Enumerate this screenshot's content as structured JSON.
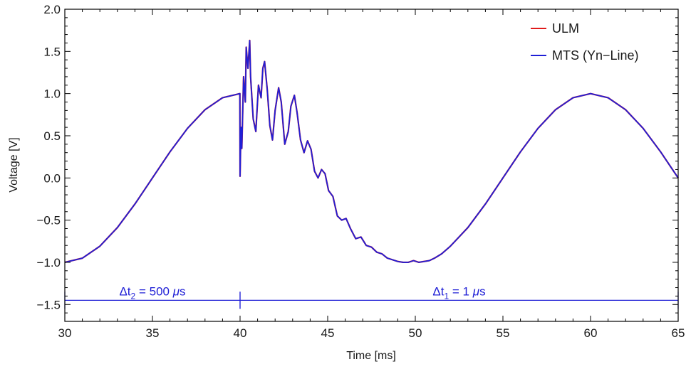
{
  "chart_data": {
    "type": "line",
    "xlabel": "Time [ms]",
    "ylabel": "Voltage [V]",
    "xlim": [
      30,
      65
    ],
    "ylim": [
      -1.7,
      2.0
    ],
    "x_ticks": [
      30,
      35,
      40,
      45,
      50,
      55,
      60,
      65
    ],
    "x_tick_labels": [
      "30",
      "35",
      "40",
      "45",
      "50",
      "55",
      "60",
      "65"
    ],
    "y_ticks": [
      -1.5,
      -1.0,
      -0.5,
      0.0,
      0.5,
      1.0,
      1.5,
      2.0
    ],
    "y_tick_labels": [
      "−1.5",
      "−1.0",
      "−0.5",
      "0.0",
      "0.5",
      "1.0",
      "1.5",
      "2.0"
    ],
    "grid": false,
    "legend": {
      "placement": "top-right"
    },
    "series": [
      {
        "name": "ULM",
        "color": "#e01b1b",
        "x": [
          30,
          31,
          32,
          33,
          34,
          35,
          36,
          37,
          38,
          39,
          39.99,
          40.0,
          40.05,
          40.1,
          40.2,
          40.3,
          40.35,
          40.45,
          40.55,
          40.6,
          40.75,
          40.9,
          41.05,
          41.2,
          41.3,
          41.4,
          41.55,
          41.7,
          41.85,
          42.0,
          42.2,
          42.35,
          42.55,
          42.75,
          42.9,
          43.1,
          43.25,
          43.45,
          43.65,
          43.85,
          44.05,
          44.25,
          44.45,
          44.65,
          44.85,
          45.05,
          45.3,
          45.55,
          45.8,
          46.05,
          46.3,
          46.6,
          46.9,
          47.2,
          47.5,
          47.8,
          48.1,
          48.4,
          48.7,
          49.0,
          49.3,
          49.6,
          49.9,
          50.2,
          50.5,
          50.8,
          51.1,
          51.5,
          52,
          53,
          54,
          55,
          56,
          57,
          58,
          59,
          60,
          61,
          62,
          63,
          64,
          65
        ],
        "values": [
          -1.0,
          -0.951,
          -0.809,
          -0.588,
          -0.309,
          0.0,
          0.309,
          0.588,
          0.809,
          0.951,
          1.0,
          0.02,
          0.6,
          0.35,
          1.2,
          0.9,
          1.55,
          1.3,
          1.63,
          1.2,
          0.7,
          0.55,
          1.1,
          0.95,
          1.3,
          1.38,
          1.05,
          0.62,
          0.45,
          0.8,
          1.07,
          0.9,
          0.4,
          0.55,
          0.85,
          0.98,
          0.78,
          0.45,
          0.3,
          0.44,
          0.34,
          0.08,
          0.0,
          0.1,
          0.05,
          -0.15,
          -0.22,
          -0.45,
          -0.5,
          -0.48,
          -0.6,
          -0.72,
          -0.7,
          -0.8,
          -0.82,
          -0.88,
          -0.9,
          -0.95,
          -0.97,
          -0.99,
          -1.0,
          -1.0,
          -0.98,
          -1.0,
          -0.99,
          -0.98,
          -0.95,
          -0.9,
          -0.809,
          -0.588,
          -0.309,
          0.0,
          0.309,
          0.588,
          0.809,
          0.951,
          1.0,
          0.951,
          0.809,
          0.588,
          0.309,
          0.0
        ]
      },
      {
        "name": "MTS (Yn−Line)",
        "color": "#1f1fd6",
        "x": [
          30,
          31,
          32,
          33,
          34,
          35,
          36,
          37,
          38,
          39,
          39.99,
          40.0,
          40.05,
          40.1,
          40.2,
          40.3,
          40.35,
          40.45,
          40.55,
          40.6,
          40.75,
          40.9,
          41.05,
          41.2,
          41.3,
          41.4,
          41.55,
          41.7,
          41.85,
          42.0,
          42.2,
          42.35,
          42.55,
          42.75,
          42.9,
          43.1,
          43.25,
          43.45,
          43.65,
          43.85,
          44.05,
          44.25,
          44.45,
          44.65,
          44.85,
          45.05,
          45.3,
          45.55,
          45.8,
          46.05,
          46.3,
          46.6,
          46.9,
          47.2,
          47.5,
          47.8,
          48.1,
          48.4,
          48.7,
          49.0,
          49.3,
          49.6,
          49.9,
          50.2,
          50.5,
          50.8,
          51.1,
          51.5,
          52,
          53,
          54,
          55,
          56,
          57,
          58,
          59,
          60,
          61,
          62,
          63,
          64,
          65
        ],
        "values": [
          -1.0,
          -0.951,
          -0.809,
          -0.588,
          -0.309,
          0.0,
          0.309,
          0.588,
          0.809,
          0.951,
          1.0,
          0.02,
          0.6,
          0.35,
          1.2,
          0.9,
          1.55,
          1.3,
          1.63,
          1.2,
          0.7,
          0.55,
          1.1,
          0.95,
          1.3,
          1.38,
          1.05,
          0.62,
          0.45,
          0.8,
          1.07,
          0.9,
          0.4,
          0.55,
          0.85,
          0.98,
          0.78,
          0.45,
          0.3,
          0.44,
          0.34,
          0.08,
          0.0,
          0.1,
          0.05,
          -0.15,
          -0.22,
          -0.45,
          -0.5,
          -0.48,
          -0.6,
          -0.72,
          -0.7,
          -0.8,
          -0.82,
          -0.88,
          -0.9,
          -0.95,
          -0.97,
          -0.99,
          -1.0,
          -1.0,
          -0.98,
          -1.0,
          -0.99,
          -0.98,
          -0.95,
          -0.9,
          -0.809,
          -0.588,
          -0.309,
          0.0,
          0.309,
          0.588,
          0.809,
          0.951,
          1.0,
          0.951,
          0.809,
          0.588,
          0.309,
          0.0
        ]
      }
    ],
    "annotations": [
      {
        "label_base": "Δt",
        "label_sub": "2",
        "label_rest": " = 500 ",
        "label_unit_italic": "μ",
        "label_unit": "s",
        "x_start": 30,
        "x_end": 40,
        "y": -1.45,
        "color": "#1f1fd6"
      },
      {
        "label_base": "Δt",
        "label_sub": "1",
        "label_rest": " = 1 ",
        "label_unit_italic": "μ",
        "label_unit": "s",
        "x_start": 40,
        "x_end": 65,
        "y": -1.45,
        "color": "#1f1fd6"
      }
    ]
  }
}
